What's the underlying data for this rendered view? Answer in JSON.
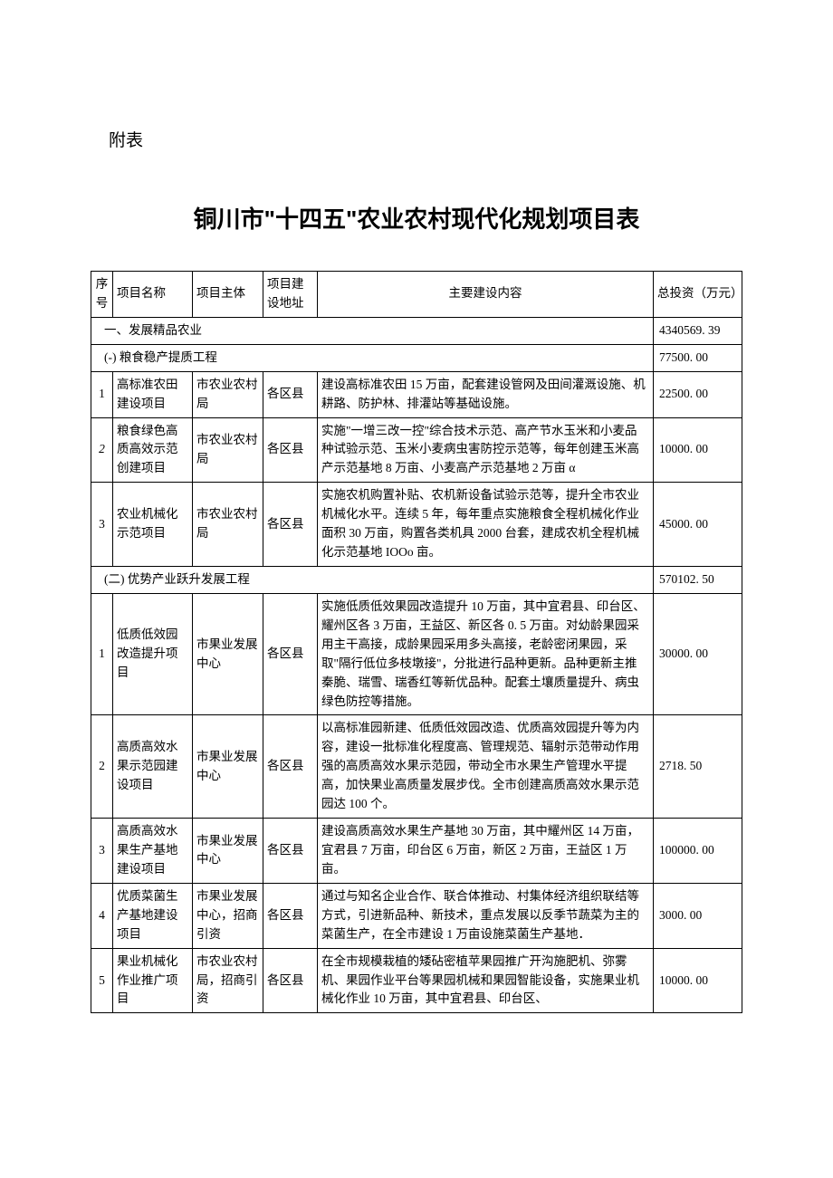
{
  "annex_label": "附表",
  "page_title": "铜川市\"十四五\"农业农村现代化规划项目表",
  "columns": {
    "seq": "序号",
    "name": "项目名称",
    "body": "项目主体",
    "addr": "项目建设地址",
    "desc": "主要建设内容",
    "inv": "总投资（万元）"
  },
  "sections": [
    {
      "label": "一、发展精品农业",
      "investment": "4340569. 39"
    },
    {
      "label": "(-) 粮食稳产提质工程",
      "investment": "77500. 00",
      "rows": [
        {
          "seq": "1",
          "name": "高标准农田建设项目",
          "body": "市农业农村局",
          "addr": "各区县",
          "desc": "建设高标准农田 15 万亩，配套建设管网及田间灌溉设施、机耕路、防护林、排灌站等基础设施。",
          "inv": "22500. 00"
        },
        {
          "seq": "2",
          "name": "粮食绿色高质高效示范创建项目",
          "body": "市农业农村局",
          "addr": "各区县",
          "desc": "实施\"一增三改一控\"综合技术示范、高产节水玉米和小麦品种试验示范、玉米小麦病虫害防控示范等，每年创建玉米高产示范基地 8 万亩、小麦高产示范基地 2 万亩 α",
          "inv": "10000. 00"
        },
        {
          "seq": "3",
          "name": "农业机械化示范项目",
          "body": "市农业农村局",
          "addr": "各区县",
          "desc": "实施农机购置补贴、农机新设备试验示范等，提升全市农业机械化水平。连续 5 年，每年重点实施粮食全程机械化作业面积 30 万亩，购置各类机具 2000 台套，建成农机全程机械化示范基地 IOOo 亩。",
          "inv": "45000. 00"
        }
      ]
    },
    {
      "label": "(二) 优势产业跃升发展工程",
      "investment": "570102. 50",
      "rows": [
        {
          "seq": "1",
          "name": "低质低效园改造提升项目",
          "body": "市果业发展中心",
          "addr": "各区县",
          "desc": "实施低质低效果园改造提升 10 万亩，其中宜君县、印台区、耀州区各 3 万亩，王益区、新区各 0. 5 万亩。对幼龄果园采用主干高接，成龄果园采用多头高接，老龄密闭果园，采取\"隔行低位多枝墩接\"，分批进行品种更新。品种更新主推秦脆、瑞雪、瑞香红等新优品种。配套土壤质量提升、病虫绿色防控等措施。",
          "inv": "30000. 00"
        },
        {
          "seq": "2",
          "name": "高质高效水果示范园建设项目",
          "body": "市果业发展中心",
          "addr": "各区县",
          "desc": "以高标准园新建、低质低效园改造、优质高效园提升等为内容，建设一批标准化程度高、管理规范、辐射示范带动作用强的高质高效水果示范园，带动全市水果生产管理水平提高，加快果业高质量发展步伐。全市创建高质高效水果示范园达 100 个。",
          "inv": "2718. 50"
        },
        {
          "seq": "3",
          "name": "高质高效水果生产基地建设项目",
          "body": "市果业发展中心",
          "addr": "各区县",
          "desc": "建设高质高效水果生产基地 30 万亩，其中耀州区 14 万亩，宜君县 7 万亩，印台区 6 万亩，新区 2 万亩，王益区 1 万亩。",
          "inv": "100000. 00"
        },
        {
          "seq": "4",
          "name": "优质菜菌生产基地建设项目",
          "body": "市果业发展中心，招商引资",
          "addr": "各区县",
          "desc": "通过与知名企业合作、联合体推动、村集体经济组织联结等方式，引进新品种、新技术，重点发展以反季节蔬菜为主的菜菌生产，在全市建设 1 万亩设施菜菌生产基地．",
          "inv": "3000. 00"
        },
        {
          "seq": "5",
          "name": "果业机械化作业推广项目",
          "body": "市农业农村局，招商引资",
          "addr": "各区县",
          "desc": "在全市规模栽植的矮砧密植苹果园推广开沟施肥机、弥雾机、果园作业平台等果园机械和果园智能设备，实施果业机械化作业 10 万亩，其中宜君县、印台区、",
          "inv": "10000. 00"
        }
      ]
    }
  ]
}
